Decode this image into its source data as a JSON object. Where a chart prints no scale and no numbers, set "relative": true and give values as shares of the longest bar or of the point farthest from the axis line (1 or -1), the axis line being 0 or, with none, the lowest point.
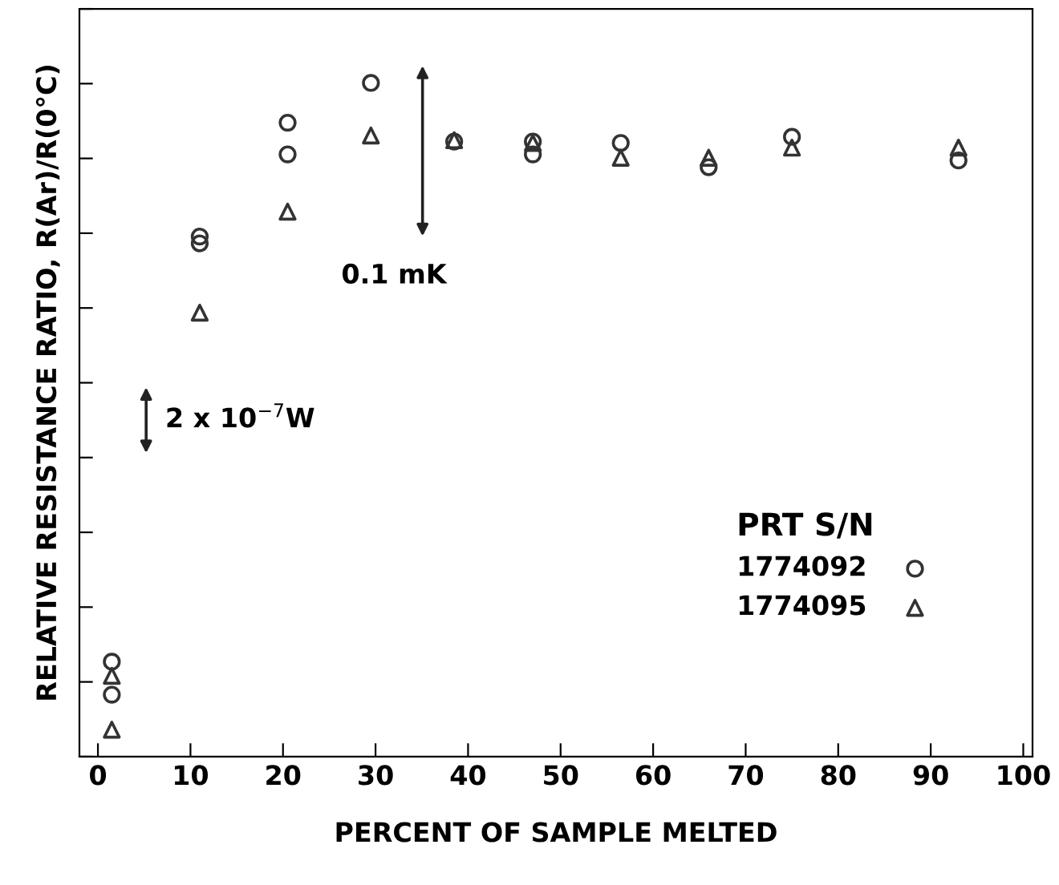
{
  "chart_data": {
    "type": "scatter",
    "relative": true,
    "xlabel": "PERCENT OF SAMPLE MELTED",
    "ylabel": "RELATIVE RESISTANCE RATIO, R(Ar)/R(0°C)",
    "legend_title": "PRT S/N",
    "legend": "bottom right",
    "grid": false,
    "xlim": [
      -2,
      101
    ],
    "xticks": [
      0,
      10,
      20,
      30,
      40,
      50,
      60,
      70,
      80,
      90,
      100
    ],
    "annotations": [
      "0.1 mK",
      "2 x 10$^{−7}$W"
    ],
    "series": [
      {
        "name": "1774092",
        "color": "#333333",
        "marker": "circle",
        "x": [
          1.5,
          1.5,
          11,
          11,
          20.5,
          20.5,
          29.5,
          38.5,
          47,
          47,
          56.5,
          66,
          75,
          93
        ],
        "values": [
          0.141,
          0.092,
          0.772,
          0.762,
          0.941,
          0.894,
          1,
          0.913,
          0.913,
          0.894,
          0.911,
          0.875,
          0.92,
          0.885
        ]
      },
      {
        "name": "1774095",
        "color": "#333333",
        "marker": "triangle",
        "x": [
          1.5,
          1.5,
          11,
          20.5,
          29.5,
          38.5,
          47,
          56.5,
          66,
          75,
          93
        ],
        "values": [
          0.12,
          0.04,
          0.659,
          0.809,
          0.922,
          0.915,
          0.911,
          0.889,
          0.889,
          0.904,
          0.904
        ]
      }
    ]
  }
}
